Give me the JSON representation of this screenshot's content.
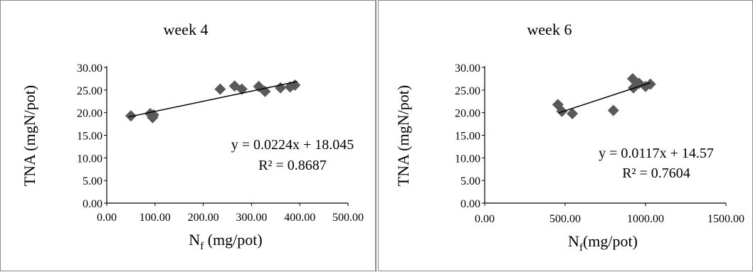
{
  "chart_data": [
    {
      "type": "scatter",
      "title": "week 4",
      "xlabel_main": "N",
      "xlabel_sub": "f",
      "xlabel_rest": " (mg/pot)",
      "ylabel": "TNA (mgN/pot)",
      "xlim": [
        0,
        500
      ],
      "ylim": [
        0,
        30
      ],
      "xticks": [
        "0.00",
        "100.00",
        "200.00",
        "300.00",
        "400.00",
        "500.00"
      ],
      "yticks": [
        "0.00",
        "5.00",
        "10.00",
        "15.00",
        "20.00",
        "25.00",
        "30.00"
      ],
      "points": [
        [
          50,
          19.3
        ],
        [
          90,
          19.8
        ],
        [
          95,
          18.9
        ],
        [
          97,
          19.5
        ],
        [
          235,
          25.2
        ],
        [
          265,
          25.9
        ],
        [
          280,
          25.2
        ],
        [
          315,
          25.8
        ],
        [
          328,
          24.7
        ],
        [
          360,
          25.5
        ],
        [
          380,
          25.7
        ],
        [
          390,
          26.1
        ]
      ],
      "trendline": {
        "slope": 0.0224,
        "intercept": 18.045,
        "x_range": [
          45,
          395
        ]
      },
      "equation": "y = 0.0224x + 18.045",
      "r2": "R² = 0.8687",
      "marker_color": "#595959"
    },
    {
      "type": "scatter",
      "title": "week 6",
      "xlabel_main": "N",
      "xlabel_sub": "f",
      "xlabel_rest": "(mg/pot)",
      "ylabel": "TNA (mgN/pot)",
      "xlim": [
        0,
        1500
      ],
      "ylim": [
        0,
        30
      ],
      "xticks": [
        "0.00",
        "500.00",
        "1000.00",
        "1500.00"
      ],
      "yticks": [
        "0.00",
        "5.00",
        "10.00",
        "15.00",
        "20.00",
        "25.00",
        "30.00"
      ],
      "points": [
        [
          455,
          21.8
        ],
        [
          480,
          20.3
        ],
        [
          545,
          19.8
        ],
        [
          800,
          20.5
        ],
        [
          920,
          27.5
        ],
        [
          925,
          25.5
        ],
        [
          960,
          26.5
        ],
        [
          1000,
          25.8
        ],
        [
          1030,
          26.3
        ]
      ],
      "trendline": {
        "slope": 0.0117,
        "intercept": 14.57,
        "x_range": [
          460,
          1030
        ]
      },
      "equation": "y = 0.0117x + 14.57",
      "r2": "R² = 0.7604",
      "marker_color": "#595959"
    }
  ]
}
